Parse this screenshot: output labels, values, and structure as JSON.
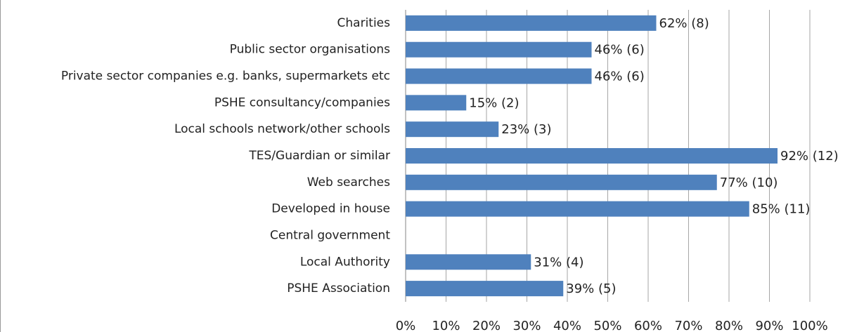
{
  "chart_data": {
    "type": "bar",
    "orientation": "horizontal",
    "categories": [
      "Charities",
      "Public sector organisations",
      "Private sector companies e.g. banks, supermarkets etc",
      "PSHE consultancy/companies",
      "Local schools network/other schools",
      "TES/Guardian or similar",
      "Web searches",
      "Developed in house",
      "Central government",
      "Local Authority",
      "PSHE Association"
    ],
    "values": [
      62,
      46,
      46,
      15,
      23,
      92,
      77,
      85,
      null,
      31,
      39
    ],
    "value_labels": [
      "62% (8)",
      "46% (6)",
      "46% (6)",
      "15% (2)",
      "23% (3)",
      "92% (12)",
      "77% (10)",
      "85% (11)",
      null,
      "31% (4)",
      "39% (5)"
    ],
    "color": "#4f81bd",
    "xlim": [
      0,
      100
    ],
    "xticks": [
      {
        "value": 0,
        "label": "0%"
      },
      {
        "value": 10,
        "label": "10%"
      },
      {
        "value": 20,
        "label": "20%"
      },
      {
        "value": 30,
        "label": "30%"
      },
      {
        "value": 40,
        "label": "40%"
      },
      {
        "value": 50,
        "label": "50%"
      },
      {
        "value": 60,
        "label": "60%"
      },
      {
        "value": 70,
        "label": "70%"
      },
      {
        "value": 80,
        "label": "80%"
      },
      {
        "value": 90,
        "label": "90%"
      },
      {
        "value": 100,
        "label": "100%"
      }
    ],
    "grid": true
  }
}
